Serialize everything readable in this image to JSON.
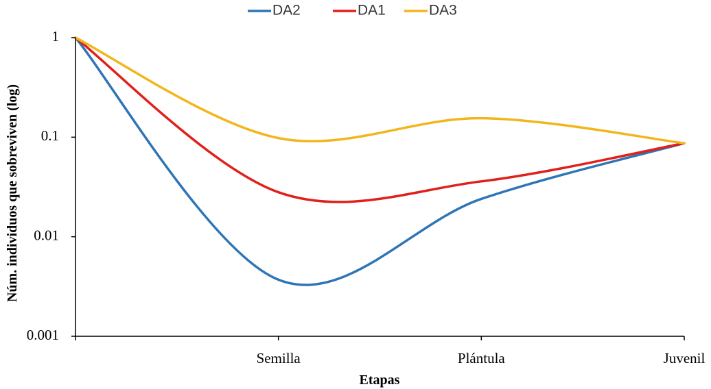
{
  "chart_data": {
    "type": "line",
    "title": "",
    "xlabel": "Etapas",
    "ylabel": "Núm. individuos que sobreviven (log)",
    "yscale": "log",
    "ylim": [
      0.001,
      1
    ],
    "y_ticks": [
      {
        "value": 1,
        "label": "1"
      },
      {
        "value": 0.1,
        "label": "0.1"
      },
      {
        "value": 0.01,
        "label": "0.01"
      },
      {
        "value": 0.001,
        "label": "0.001"
      }
    ],
    "categories": [
      "",
      "Semilla",
      "Plántula",
      "Juvenil"
    ],
    "legend_position": "top-center",
    "series": [
      {
        "name": "DA2",
        "color": "#2E75B6",
        "values": [
          1,
          0.0037,
          0.024,
          0.087
        ]
      },
      {
        "name": "DA1",
        "color": "#E0201B",
        "values": [
          1,
          0.028,
          0.036,
          0.087
        ]
      },
      {
        "name": "DA3",
        "color": "#F2B61B",
        "values": [
          1,
          0.098,
          0.155,
          0.087
        ]
      }
    ]
  }
}
